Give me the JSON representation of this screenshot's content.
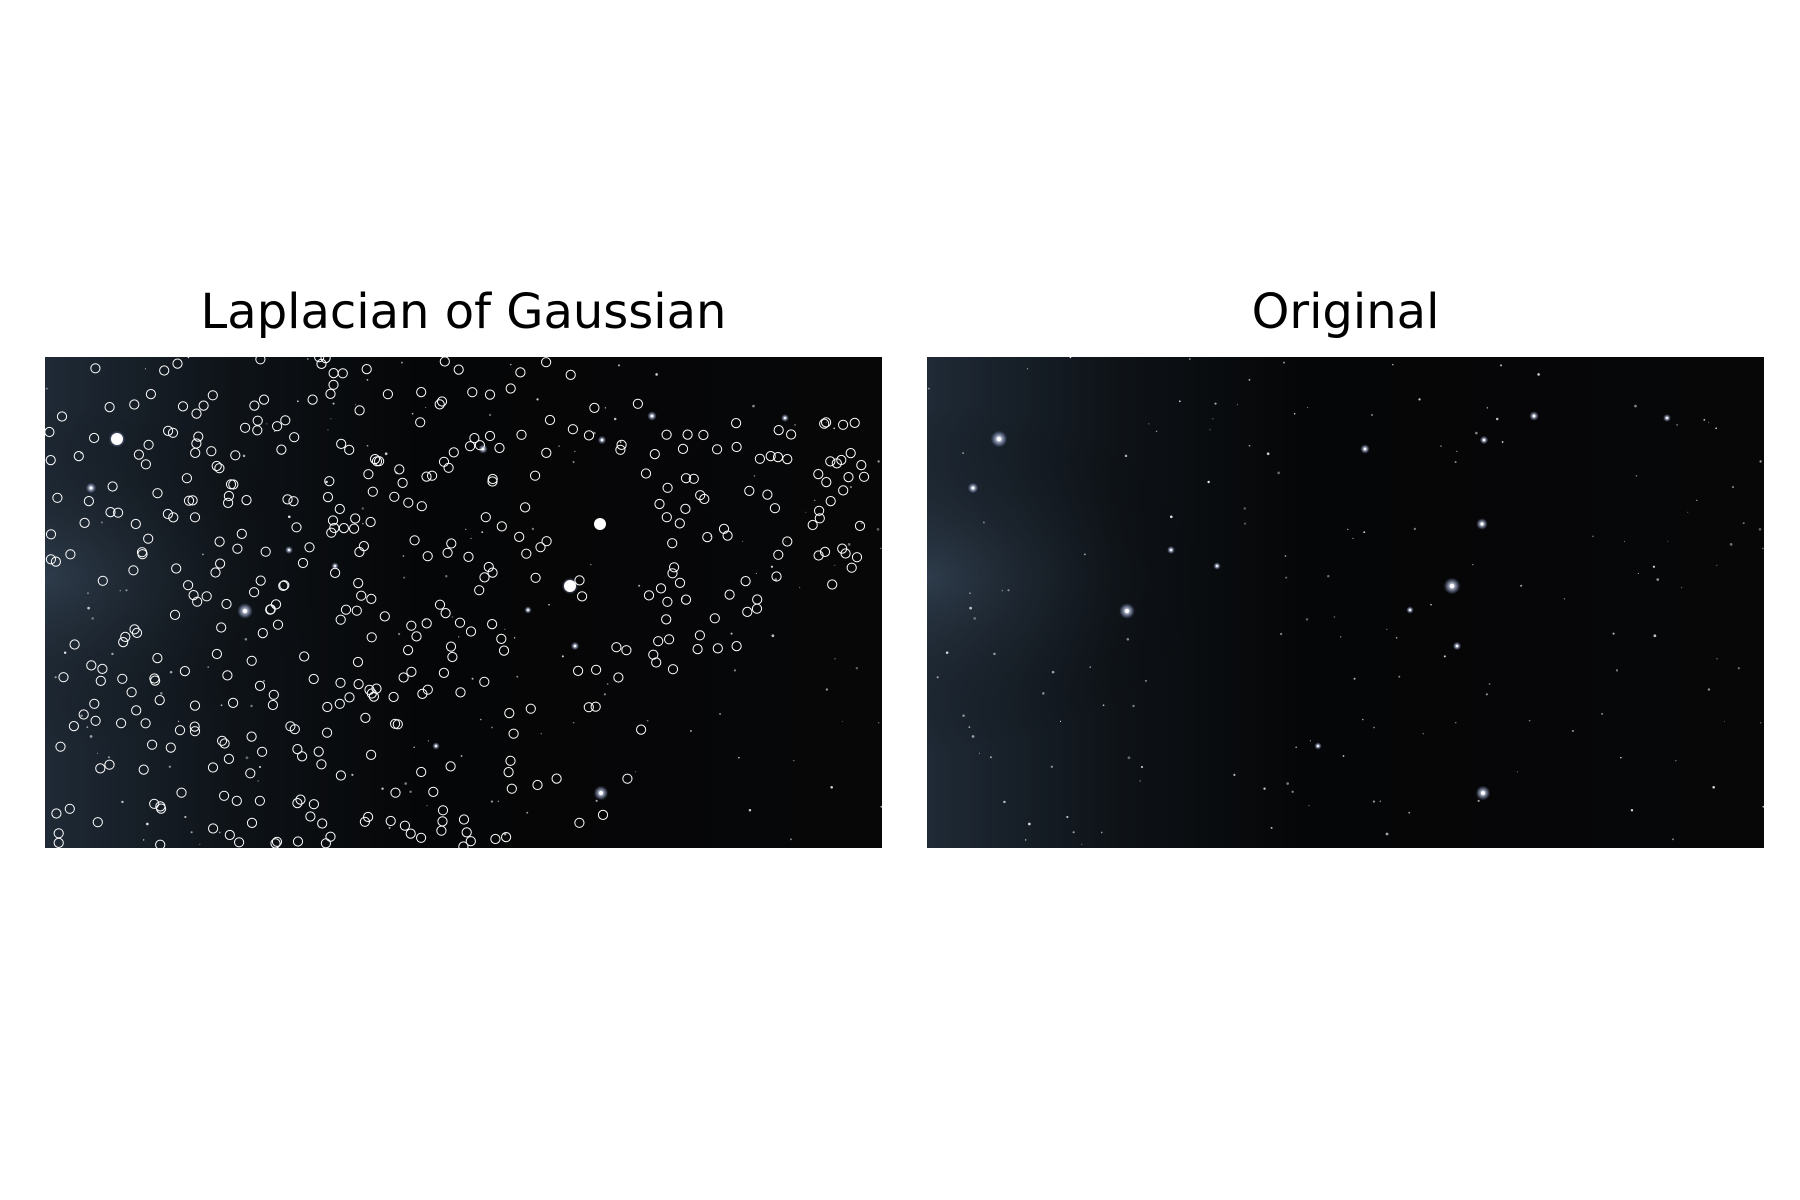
{
  "figure": {
    "left_panel": {
      "title": "Laplacian of Gaussian"
    },
    "right_panel": {
      "title": "Original"
    }
  },
  "colors": {
    "background": "#ffffff",
    "sky_dark": "#050607",
    "milky_way_haze": "#1f2a36",
    "star": "#ffffff",
    "detection_circle": "#ffffff"
  }
}
